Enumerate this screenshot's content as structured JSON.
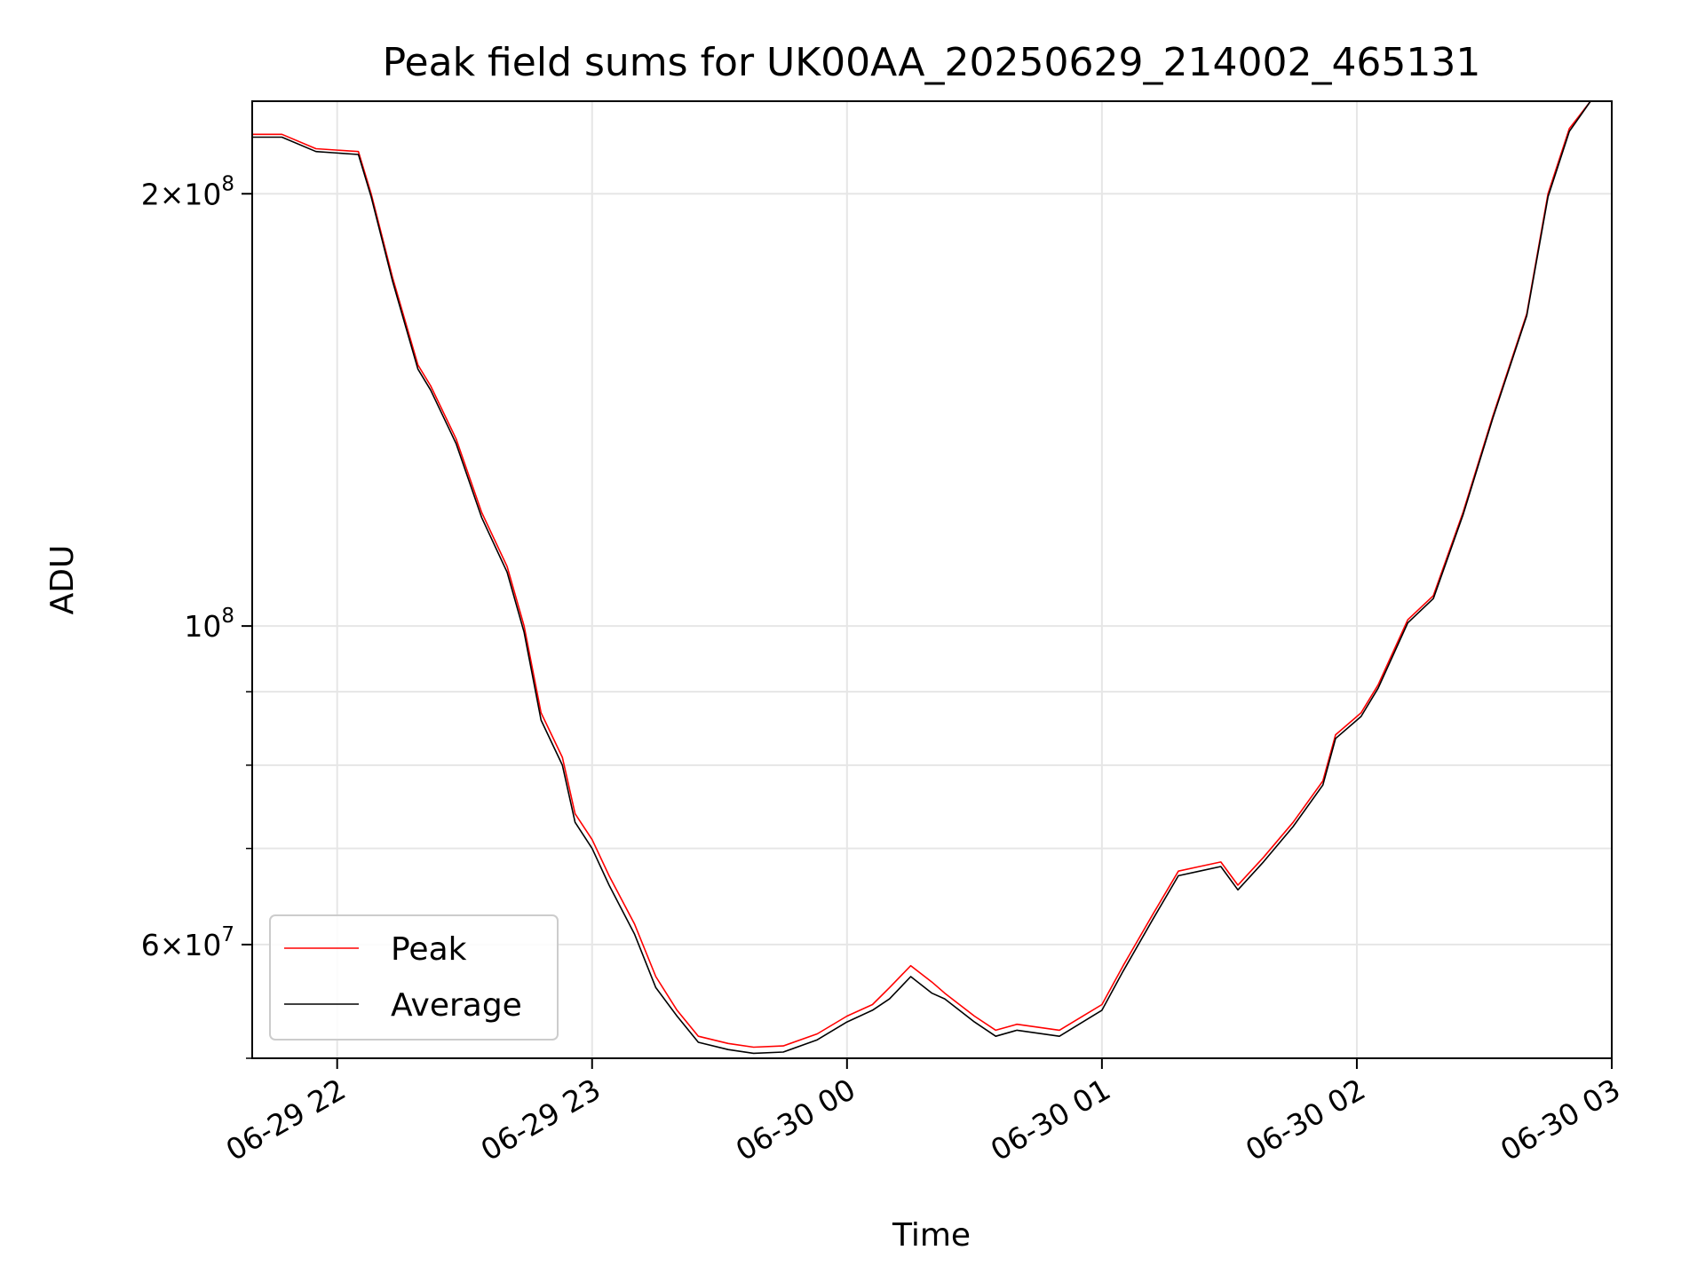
{
  "chart_data": {
    "type": "line",
    "title": "Peak field sums for UK00AA_20250629_214002_465131",
    "xlabel": "Time",
    "ylabel": "ADU",
    "x_scale": "time",
    "y_scale": "log",
    "xlim": [
      "2025-06-29 21:40",
      "2025-06-30 03:00"
    ],
    "ylim": [
      50000000,
      232000000
    ],
    "x_ticks": [
      {
        "value": "2025-06-29 22:00",
        "label": "06-29 22"
      },
      {
        "value": "2025-06-29 23:00",
        "label": "06-29 23"
      },
      {
        "value": "2025-06-30 00:00",
        "label": "06-30 00"
      },
      {
        "value": "2025-06-30 01:00",
        "label": "06-30 01"
      },
      {
        "value": "2025-06-30 02:00",
        "label": "06-30 02"
      },
      {
        "value": "2025-06-30 03:00",
        "label": "06-30 03"
      }
    ],
    "y_major_ticks": [
      {
        "value": 60000000,
        "base": "6",
        "exp": "7"
      },
      {
        "value": 100000000,
        "base": "",
        "exp": "8"
      },
      {
        "value": 200000000,
        "base": "2",
        "exp": "8"
      }
    ],
    "y_minor_ticks": [
      50000000,
      70000000,
      80000000,
      90000000
    ],
    "grid": true,
    "legend": {
      "position": "lower-left"
    },
    "series": [
      {
        "name": "Peak",
        "color": "#ff0000",
        "x": [
          "2025-06-29 21:40",
          "2025-06-29 21:47",
          "2025-06-29 21:55",
          "2025-06-29 22:05",
          "2025-06-29 22:08",
          "2025-06-29 22:13",
          "2025-06-29 22:19",
          "2025-06-29 22:22",
          "2025-06-29 22:28",
          "2025-06-29 22:34",
          "2025-06-29 22:40",
          "2025-06-29 22:44",
          "2025-06-29 22:48",
          "2025-06-29 22:53",
          "2025-06-29 22:56",
          "2025-06-29 23:00",
          "2025-06-29 23:04",
          "2025-06-29 23:10",
          "2025-06-29 23:15",
          "2025-06-29 23:20",
          "2025-06-29 23:25",
          "2025-06-29 23:32",
          "2025-06-29 23:38",
          "2025-06-29 23:45",
          "2025-06-29 23:53",
          "2025-06-30 00:00",
          "2025-06-30 00:06",
          "2025-06-30 00:10",
          "2025-06-30 00:15",
          "2025-06-30 00:20",
          "2025-06-30 00:23",
          "2025-06-30 00:30",
          "2025-06-30 00:35",
          "2025-06-30 00:40",
          "2025-06-30 00:50",
          "2025-06-30 01:00",
          "2025-06-30 01:05",
          "2025-06-30 01:12",
          "2025-06-30 01:18",
          "2025-06-30 01:23",
          "2025-06-30 01:28",
          "2025-06-30 01:32",
          "2025-06-30 01:38",
          "2025-06-30 01:45",
          "2025-06-30 01:52",
          "2025-06-30 01:55",
          "2025-06-30 02:01",
          "2025-06-30 02:05",
          "2025-06-30 02:12",
          "2025-06-30 02:18",
          "2025-06-30 02:25",
          "2025-06-30 02:32",
          "2025-06-30 02:40",
          "2025-06-30 02:45",
          "2025-06-30 02:50",
          "2025-06-30 02:55",
          "2025-06-30 03:00"
        ],
        "values": [
          220000000,
          220000000,
          215000000,
          214000000,
          200000000,
          175000000,
          152000000,
          147000000,
          135000000,
          120000000,
          110000000,
          100000000,
          87000000,
          81000000,
          74000000,
          71000000,
          67000000,
          62000000,
          57000000,
          54000000,
          51800000,
          51200000,
          50900000,
          51000000,
          52000000,
          53500000,
          54500000,
          56000000,
          58000000,
          56500000,
          55500000,
          53500000,
          52300000,
          52800000,
          52300000,
          54500000,
          58000000,
          63000000,
          67500000,
          68000000,
          68500000,
          66000000,
          69000000,
          73000000,
          78000000,
          84000000,
          87000000,
          91000000,
          101000000,
          105000000,
          120000000,
          140000000,
          165000000,
          200000000,
          222000000,
          232000000,
          232000000
        ]
      },
      {
        "name": "Average",
        "color": "#000000",
        "x": [
          "2025-06-29 21:40",
          "2025-06-29 21:47",
          "2025-06-29 21:55",
          "2025-06-29 22:05",
          "2025-06-29 22:08",
          "2025-06-29 22:13",
          "2025-06-29 22:19",
          "2025-06-29 22:22",
          "2025-06-29 22:28",
          "2025-06-29 22:34",
          "2025-06-29 22:40",
          "2025-06-29 22:44",
          "2025-06-29 22:48",
          "2025-06-29 22:53",
          "2025-06-29 22:56",
          "2025-06-29 23:00",
          "2025-06-29 23:04",
          "2025-06-29 23:10",
          "2025-06-29 23:15",
          "2025-06-29 23:20",
          "2025-06-29 23:25",
          "2025-06-29 23:32",
          "2025-06-29 23:38",
          "2025-06-29 23:45",
          "2025-06-29 23:53",
          "2025-06-30 00:00",
          "2025-06-30 00:06",
          "2025-06-30 00:10",
          "2025-06-30 00:15",
          "2025-06-30 00:20",
          "2025-06-30 00:23",
          "2025-06-30 00:30",
          "2025-06-30 00:35",
          "2025-06-30 00:40",
          "2025-06-30 00:50",
          "2025-06-30 01:00",
          "2025-06-30 01:05",
          "2025-06-30 01:12",
          "2025-06-30 01:18",
          "2025-06-30 01:23",
          "2025-06-30 01:28",
          "2025-06-30 01:32",
          "2025-06-30 01:38",
          "2025-06-30 01:45",
          "2025-06-30 01:52",
          "2025-06-30 01:55",
          "2025-06-30 02:01",
          "2025-06-30 02:05",
          "2025-06-30 02:12",
          "2025-06-30 02:18",
          "2025-06-30 02:25",
          "2025-06-30 02:32",
          "2025-06-30 02:40",
          "2025-06-30 02:45",
          "2025-06-30 02:50",
          "2025-06-30 02:55",
          "2025-06-30 03:00"
        ],
        "values": [
          219000000,
          219000000,
          214000000,
          213000000,
          199000000,
          174000000,
          151000000,
          146000000,
          134000000,
          119000000,
          109000000,
          99000000,
          86000000,
          80000000,
          73000000,
          70000000,
          66000000,
          61000000,
          56000000,
          53500000,
          51300000,
          50700000,
          50400000,
          50500000,
          51500000,
          53000000,
          54000000,
          55000000,
          57000000,
          55500000,
          55000000,
          53000000,
          51800000,
          52300000,
          51800000,
          54000000,
          57500000,
          62500000,
          67000000,
          67500000,
          68000000,
          65500000,
          68500000,
          72500000,
          77500000,
          83500000,
          86500000,
          90500000,
          100500000,
          104500000,
          119500000,
          139500000,
          164500000,
          199000000,
          221000000,
          232000000,
          232000000
        ]
      }
    ]
  }
}
